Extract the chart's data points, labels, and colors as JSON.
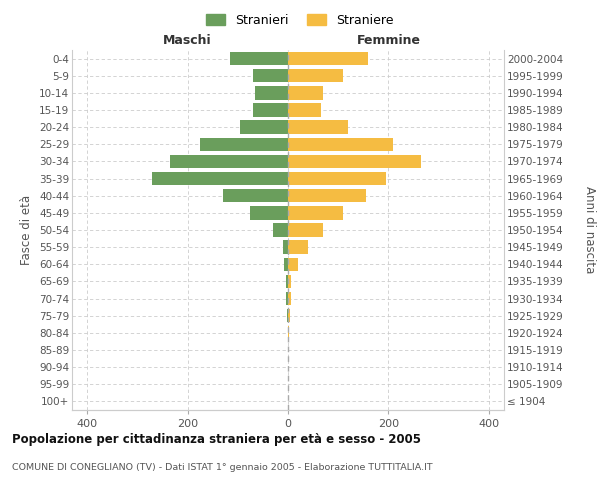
{
  "age_groups": [
    "100+",
    "95-99",
    "90-94",
    "85-89",
    "80-84",
    "75-79",
    "70-74",
    "65-69",
    "60-64",
    "55-59",
    "50-54",
    "45-49",
    "40-44",
    "35-39",
    "30-34",
    "25-29",
    "20-24",
    "15-19",
    "10-14",
    "5-9",
    "0-4"
  ],
  "birth_years": [
    "≤ 1904",
    "1905-1909",
    "1910-1914",
    "1915-1919",
    "1920-1924",
    "1925-1929",
    "1930-1934",
    "1935-1939",
    "1940-1944",
    "1945-1949",
    "1950-1954",
    "1955-1959",
    "1960-1964",
    "1965-1969",
    "1970-1974",
    "1975-1979",
    "1980-1984",
    "1985-1989",
    "1990-1994",
    "1995-1999",
    "2000-2004"
  ],
  "maschi": [
    0,
    0,
    0,
    0,
    0,
    2,
    3,
    4,
    8,
    10,
    30,
    75,
    130,
    270,
    235,
    175,
    95,
    70,
    65,
    70,
    115
  ],
  "femmine": [
    0,
    0,
    0,
    0,
    2,
    4,
    5,
    6,
    20,
    40,
    70,
    110,
    155,
    195,
    265,
    210,
    120,
    65,
    70,
    110,
    160
  ],
  "color_maschi": "#6a9e5c",
  "color_femmine": "#f5bc42",
  "title": "Popolazione per cittadinanza straniera per età e sesso - 2005",
  "subtitle": "COMUNE DI CONEGLIANO (TV) - Dati ISTAT 1° gennaio 2005 - Elaborazione TUTTITALIA.IT",
  "xlabel_left": "Maschi",
  "xlabel_right": "Femmine",
  "ylabel_left": "Fasce di età",
  "ylabel_right": "Anni di nascita",
  "legend_maschi": "Stranieri",
  "legend_femmine": "Straniere",
  "xlim": 430,
  "background_color": "#ffffff",
  "grid_color": "#cccccc"
}
